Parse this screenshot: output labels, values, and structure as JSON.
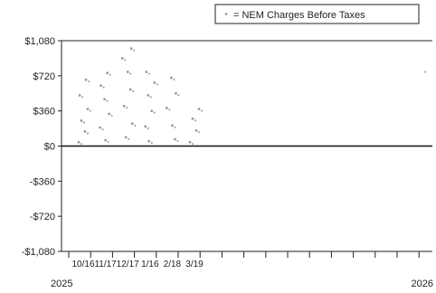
{
  "chart_data": {
    "type": "scatter",
    "title": "",
    "xlabel": "",
    "ylabel": "",
    "legend": {
      "position": "top-right",
      "entries": [
        "= NEM Charges Before Taxes"
      ]
    },
    "y_ticks": [
      "$1,080",
      "$720",
      "$360",
      "$0",
      "-$360",
      "-$720",
      "-$1,080"
    ],
    "y_tick_values": [
      1080,
      720,
      360,
      0,
      -360,
      -720,
      -1080
    ],
    "ylim": [
      -1080,
      1080
    ],
    "x_tick_labels": [
      "10/16",
      "11/17",
      "12/17",
      "1/16",
      "2/18",
      "3/19"
    ],
    "x_year_labels": [
      "2025",
      "2026"
    ],
    "grid": false,
    "series": [
      {
        "name": "= NEM Charges Before Taxes",
        "color": "#9a9a9a",
        "points": [
          {
            "x": "10/16",
            "y": 40
          },
          {
            "x": "10/16",
            "y": 150
          },
          {
            "x": "10/16",
            "y": 260
          },
          {
            "x": "10/16",
            "y": 380
          },
          {
            "x": "10/16",
            "y": 520
          },
          {
            "x": "10/16",
            "y": 680
          },
          {
            "x": "11/17",
            "y": 60
          },
          {
            "x": "11/17",
            "y": 190
          },
          {
            "x": "11/17",
            "y": 330
          },
          {
            "x": "11/17",
            "y": 480
          },
          {
            "x": "11/17",
            "y": 620
          },
          {
            "x": "11/17",
            "y": 750
          },
          {
            "x": "12/17",
            "y": 90
          },
          {
            "x": "12/17",
            "y": 230
          },
          {
            "x": "12/17",
            "y": 410
          },
          {
            "x": "12/17",
            "y": 580
          },
          {
            "x": "12/17",
            "y": 760
          },
          {
            "x": "12/17",
            "y": 900
          },
          {
            "x": "12/17",
            "y": 1000
          },
          {
            "x": "1/16",
            "y": 50
          },
          {
            "x": "1/16",
            "y": 200
          },
          {
            "x": "1/16",
            "y": 360
          },
          {
            "x": "1/16",
            "y": 520
          },
          {
            "x": "1/16",
            "y": 650
          },
          {
            "x": "1/16",
            "y": 760
          },
          {
            "x": "2/18",
            "y": 70
          },
          {
            "x": "2/18",
            "y": 210
          },
          {
            "x": "2/18",
            "y": 390
          },
          {
            "x": "2/18",
            "y": 540
          },
          {
            "x": "2/18",
            "y": 700
          },
          {
            "x": "3/19",
            "y": 40
          },
          {
            "x": "3/19",
            "y": 160
          },
          {
            "x": "3/19",
            "y": 280
          },
          {
            "x": "3/19",
            "y": 380
          }
        ]
      }
    ],
    "stray_marker_y": 760
  }
}
